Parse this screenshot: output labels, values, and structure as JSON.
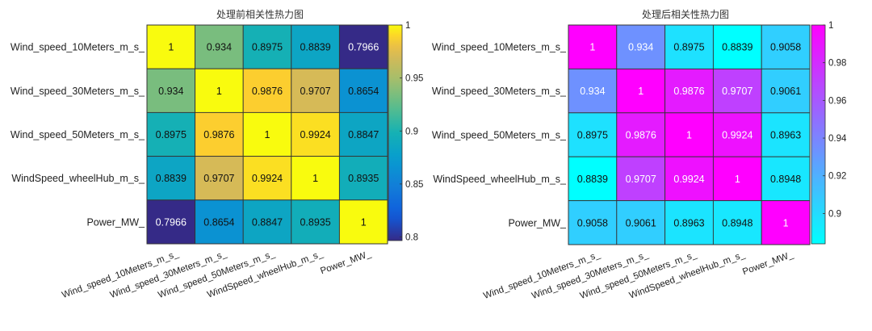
{
  "chart_data": [
    {
      "type": "heatmap",
      "title": "处理前相关性热力图",
      "rows": [
        "Wind_speed_10Meters_m_s_",
        "Wind_speed_30Meters_m_s_",
        "Wind_speed_50Meters_m_s_",
        "WindSpeed_wheelHub_m_s_",
        "Power_MW_"
      ],
      "columns": [
        "Wind_speed_10Meters_m_s_",
        "Wind_speed_30Meters_m_s_",
        "Wind_speed_50Meters_m_s_",
        "WindSpeed_wheelHub_m_s_",
        "Power_MW_"
      ],
      "values": [
        [
          1,
          0.934,
          0.8975,
          0.8839,
          0.7966
        ],
        [
          0.934,
          1,
          0.9876,
          0.9707,
          0.8654
        ],
        [
          0.8975,
          0.9876,
          1,
          0.9924,
          0.8847
        ],
        [
          0.8839,
          0.9707,
          0.9924,
          1,
          0.8935
        ],
        [
          0.7966,
          0.8654,
          0.8847,
          0.8935,
          1
        ]
      ],
      "labels": [
        [
          "1",
          "0.934",
          "0.8975",
          "0.8839",
          "0.7966"
        ],
        [
          "0.934",
          "1",
          "0.9876",
          "0.9707",
          "0.8654"
        ],
        [
          "0.8975",
          "0.9876",
          "1",
          "0.9924",
          "0.8847"
        ],
        [
          "0.8839",
          "0.9707",
          "0.9924",
          "1",
          "0.8935"
        ],
        [
          "0.7966",
          "0.8654",
          "0.8847",
          "0.8935",
          "1"
        ]
      ],
      "colormap": "parula",
      "colorbar": {
        "min": 0.7966,
        "max": 1,
        "ticks": [
          0.8,
          0.85,
          0.9,
          0.95,
          1
        ],
        "tick_labels": [
          "0.8",
          "0.85",
          "0.9",
          "0.95",
          "1"
        ]
      }
    },
    {
      "type": "heatmap",
      "title": "处理后相关性热力图",
      "rows": [
        "Wind_speed_10Meters_m_s_",
        "Wind_speed_30Meters_m_s_",
        "Wind_speed_50Meters_m_s_",
        "WindSpeed_wheelHub_m_s_",
        "Power_MW_"
      ],
      "columns": [
        "Wind_speed_10Meters_m_s_",
        "Wind_speed_30Meters_m_s_",
        "Wind_speed_50Meters_m_s_",
        "WindSpeed_wheelHub_m_s_",
        "Power_MW_"
      ],
      "values": [
        [
          1,
          0.934,
          0.8975,
          0.8839,
          0.9058
        ],
        [
          0.934,
          1,
          0.9876,
          0.9707,
          0.9061
        ],
        [
          0.8975,
          0.9876,
          1,
          0.9924,
          0.8963
        ],
        [
          0.8839,
          0.9707,
          0.9924,
          1,
          0.8948
        ],
        [
          0.9058,
          0.9061,
          0.8963,
          0.8948,
          1
        ]
      ],
      "labels": [
        [
          "1",
          "0.934",
          "0.8975",
          "0.8839",
          "0.9058"
        ],
        [
          "0.934",
          "1",
          "0.9876",
          "0.9707",
          "0.9061"
        ],
        [
          "0.8975",
          "0.9876",
          "1",
          "0.9924",
          "0.8963"
        ],
        [
          "0.8839",
          "0.9707",
          "0.9924",
          "1",
          "0.8948"
        ],
        [
          "0.9058",
          "0.9061",
          "0.8963",
          "0.8948",
          "1"
        ]
      ],
      "colormap": "cool",
      "colorbar": {
        "min": 0.8839,
        "max": 1,
        "ticks": [
          0.9,
          0.92,
          0.94,
          0.96,
          0.98,
          1
        ],
        "tick_labels": [
          "0.9",
          "0.92",
          "0.94",
          "0.96",
          "0.98",
          "1"
        ]
      }
    }
  ]
}
